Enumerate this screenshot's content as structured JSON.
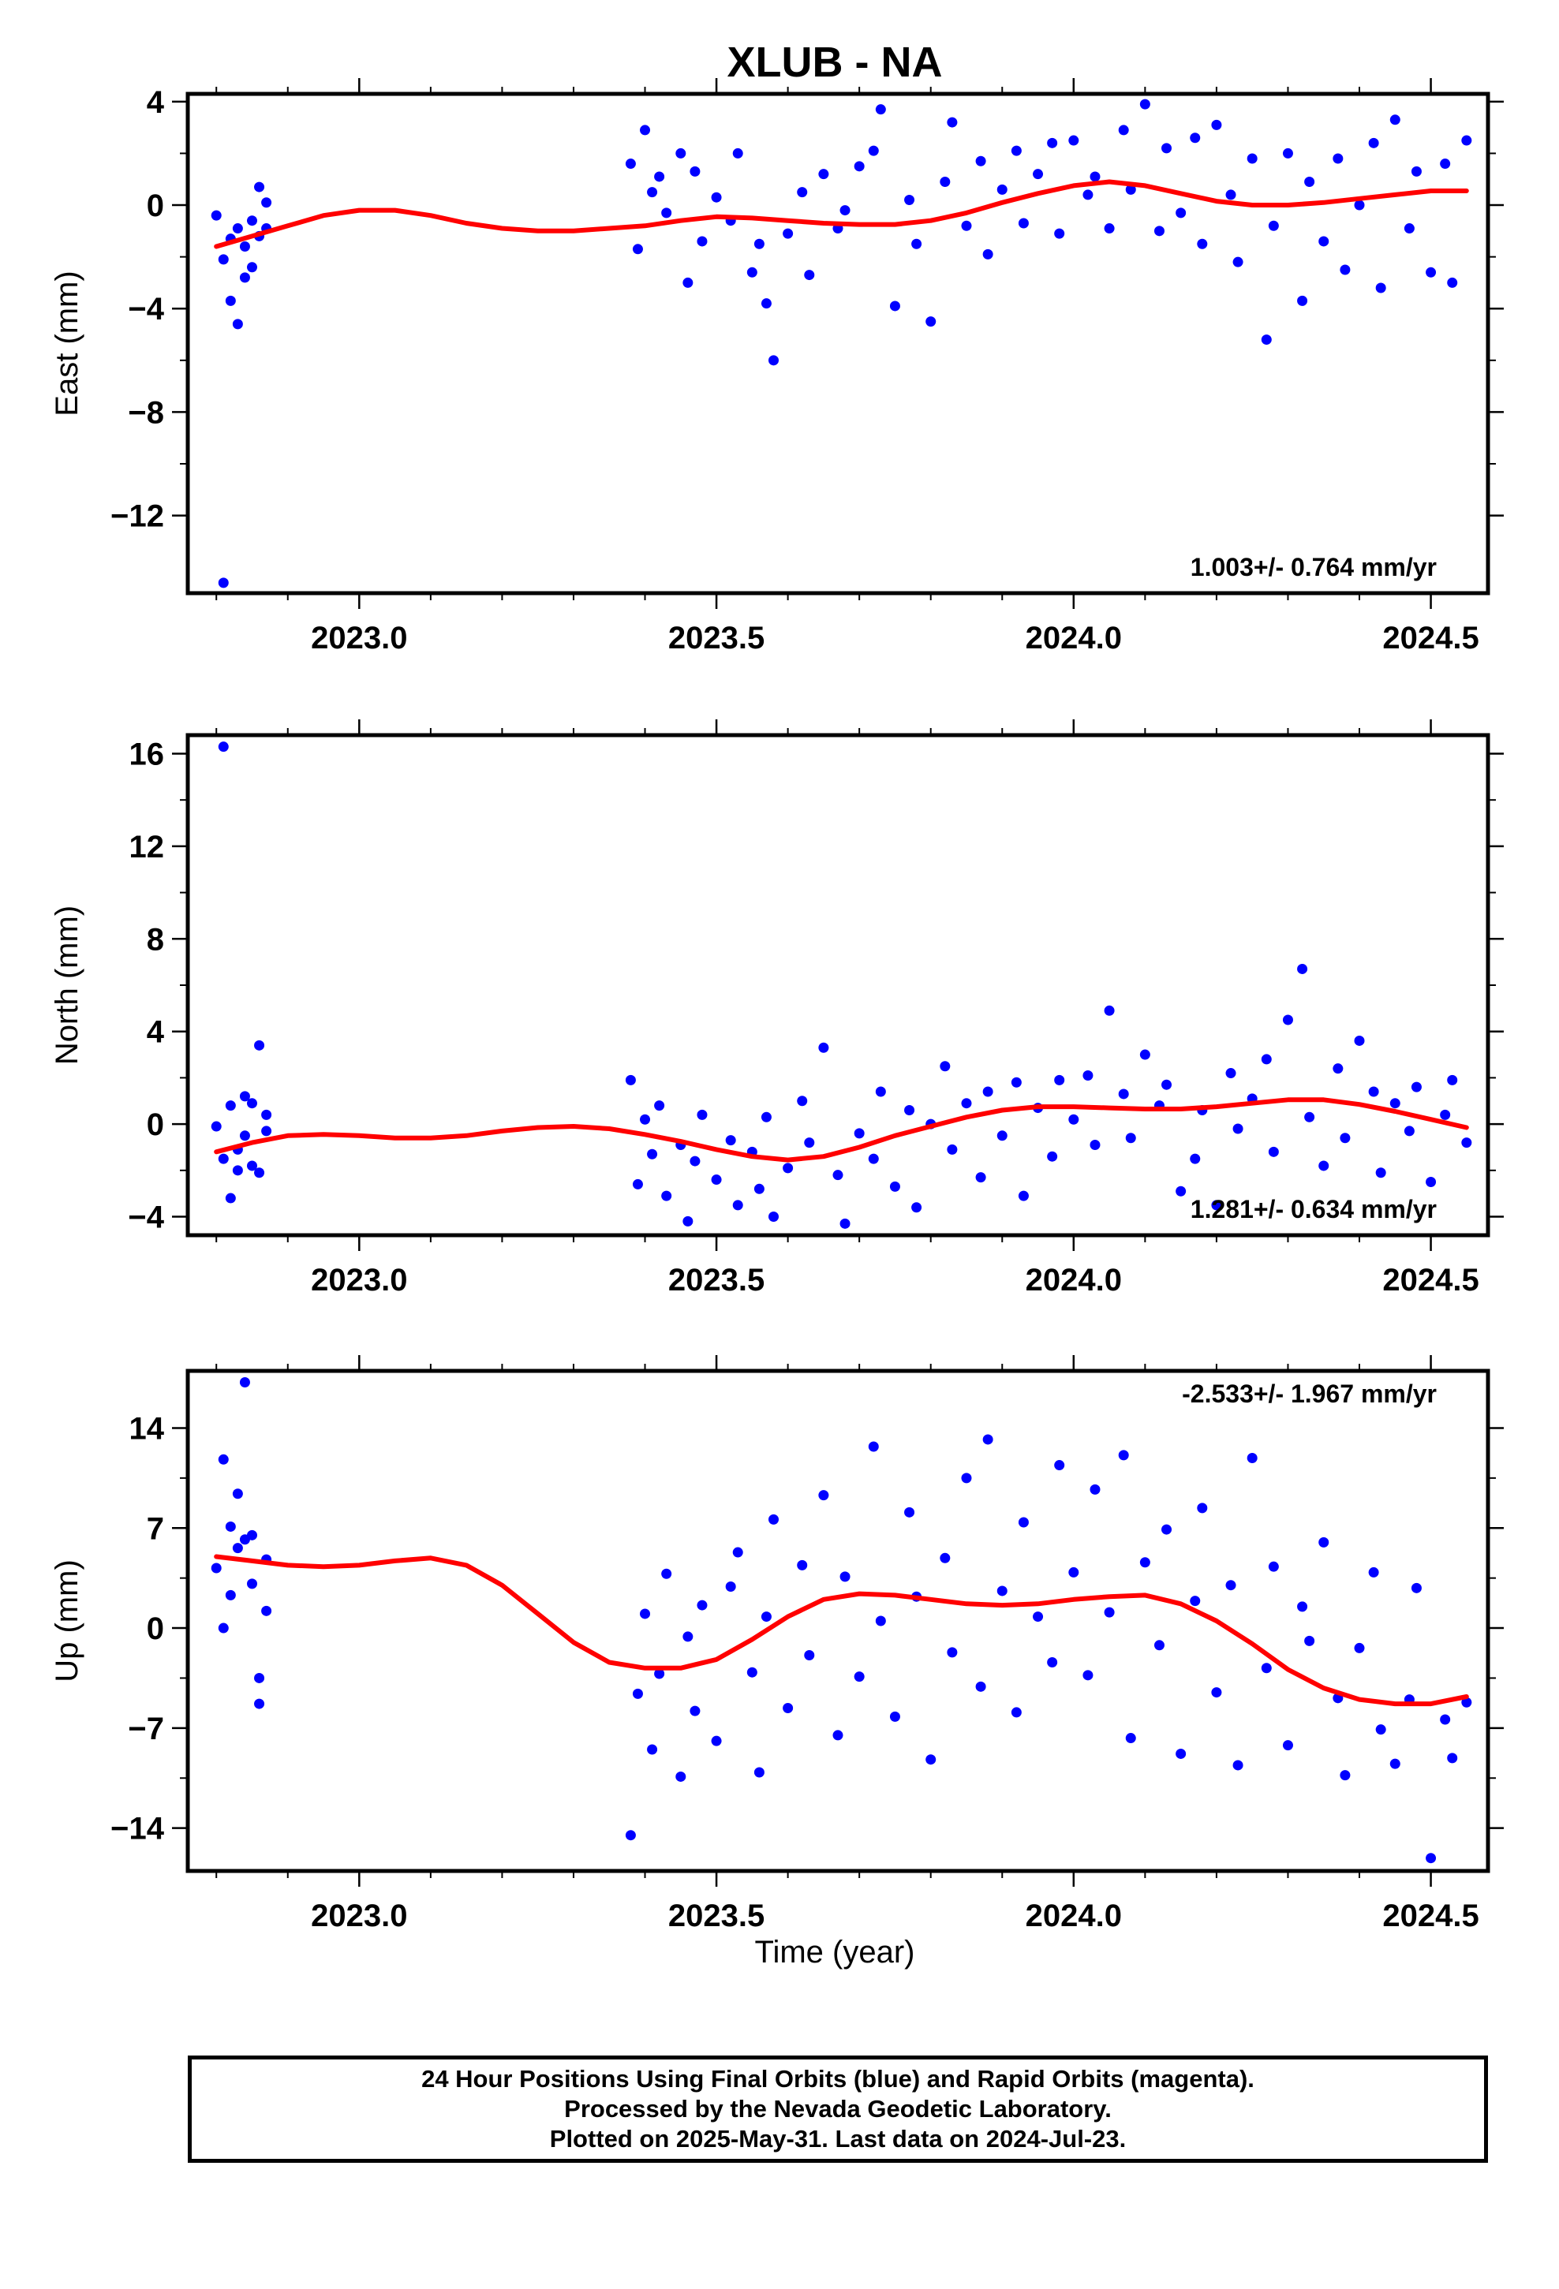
{
  "title": "XLUB - NA",
  "colors": {
    "data_points": "#0000ff",
    "fit_line": "#ff0000",
    "frame": "#000000"
  },
  "caption": {
    "line1": "24 Hour Positions Using Final Orbits (blue) and Rapid Orbits (magenta).",
    "line2": "Processed by the Nevada Geodetic Laboratory.",
    "line3": "Plotted on 2025-May-31. Last data on 2024-Jul-23."
  },
  "chart_data": [
    {
      "type": "scatter",
      "ylabel": "East (mm)",
      "xlabel": "",
      "xlim": [
        2022.76,
        2024.58
      ],
      "ylim": [
        -15.0,
        4.3
      ],
      "xticks": [
        2023.0,
        2023.5,
        2024.0,
        2024.5
      ],
      "xtick_labels": [
        "2023.0",
        "2023.5",
        "2024.0",
        "2024.5"
      ],
      "yticks": [
        4,
        0,
        -4,
        -8,
        -12
      ],
      "ytick_labels": [
        "4",
        "0",
        "−4",
        "−8",
        "−12"
      ],
      "rate_label": "1.003+/- 0.764 mm/yr",
      "rate_position": "bottom-right",
      "series": [
        {
          "kind": "points",
          "x": [
            2022.8,
            2022.81,
            2022.81,
            2022.82,
            2022.82,
            2022.83,
            2022.83,
            2022.84,
            2022.84,
            2022.85,
            2022.85,
            2022.86,
            2022.86,
            2022.87,
            2022.87,
            2023.38,
            2023.39,
            2023.4,
            2023.41,
            2023.42,
            2023.43,
            2023.45,
            2023.46,
            2023.47,
            2023.48,
            2023.5,
            2023.52,
            2023.53,
            2023.55,
            2023.56,
            2023.57,
            2023.58,
            2023.6,
            2023.62,
            2023.63,
            2023.65,
            2023.67,
            2023.68,
            2023.7,
            2023.72,
            2023.73,
            2023.75,
            2023.77,
            2023.78,
            2023.8,
            2023.82,
            2023.83,
            2023.85,
            2023.87,
            2023.88,
            2023.9,
            2023.92,
            2023.93,
            2023.95,
            2023.97,
            2023.98,
            2024.0,
            2024.02,
            2024.03,
            2024.05,
            2024.07,
            2024.08,
            2024.1,
            2024.12,
            2024.13,
            2024.15,
            2024.17,
            2024.18,
            2024.2,
            2024.22,
            2024.23,
            2024.25,
            2024.27,
            2024.28,
            2024.3,
            2024.32,
            2024.33,
            2024.35,
            2024.37,
            2024.38,
            2024.4,
            2024.42,
            2024.43,
            2024.45,
            2024.47,
            2024.48,
            2024.5,
            2024.52,
            2024.53,
            2024.55
          ],
          "y": [
            -0.4,
            -2.1,
            -14.6,
            -3.7,
            -1.3,
            -4.6,
            -0.9,
            -2.8,
            -1.6,
            -2.4,
            -0.6,
            -1.2,
            0.7,
            -0.9,
            0.1,
            1.6,
            -1.7,
            2.9,
            0.5,
            1.1,
            -0.3,
            2.0,
            -3.0,
            1.3,
            -1.4,
            0.3,
            -0.6,
            2.0,
            -2.6,
            -1.5,
            -3.8,
            -6.0,
            -1.1,
            0.5,
            -2.7,
            1.2,
            -0.9,
            -0.2,
            1.5,
            2.1,
            3.7,
            -3.9,
            0.2,
            -1.5,
            -4.5,
            0.9,
            3.2,
            -0.8,
            1.7,
            -1.9,
            0.6,
            2.1,
            -0.7,
            1.2,
            2.4,
            -1.1,
            2.5,
            0.4,
            1.1,
            -0.9,
            2.9,
            0.6,
            3.9,
            -1.0,
            2.2,
            -0.3,
            2.6,
            -1.5,
            3.1,
            0.4,
            -2.2,
            1.8,
            -5.2,
            -0.8,
            2.0,
            -3.7,
            0.9,
            -1.4,
            1.8,
            -2.5,
            0.0,
            2.4,
            -3.2,
            3.3,
            -0.9,
            1.3,
            -2.6,
            1.6,
            -3.0,
            2.5
          ]
        },
        {
          "kind": "fit",
          "x": [
            2022.8,
            2022.85,
            2022.9,
            2022.95,
            2023.0,
            2023.05,
            2023.1,
            2023.15,
            2023.2,
            2023.25,
            2023.3,
            2023.35,
            2023.4,
            2023.45,
            2023.5,
            2023.55,
            2023.6,
            2023.65,
            2023.7,
            2023.75,
            2023.8,
            2023.85,
            2023.9,
            2023.95,
            2024.0,
            2024.05,
            2024.1,
            2024.15,
            2024.2,
            2024.25,
            2024.3,
            2024.35,
            2024.4,
            2024.45,
            2024.5,
            2024.55
          ],
          "y": [
            -1.6,
            -1.2,
            -0.8,
            -0.4,
            -0.2,
            -0.2,
            -0.4,
            -0.7,
            -0.9,
            -1.0,
            -1.0,
            -0.9,
            -0.8,
            -0.6,
            -0.45,
            -0.5,
            -0.6,
            -0.7,
            -0.75,
            -0.75,
            -0.6,
            -0.3,
            0.1,
            0.45,
            0.75,
            0.9,
            0.75,
            0.45,
            0.15,
            0.0,
            0.0,
            0.1,
            0.25,
            0.4,
            0.55,
            0.55
          ]
        }
      ]
    },
    {
      "type": "scatter",
      "ylabel": "North (mm)",
      "xlabel": "",
      "xlim": [
        2022.76,
        2024.58
      ],
      "ylim": [
        -4.8,
        16.8
      ],
      "xticks": [
        2023.0,
        2023.5,
        2024.0,
        2024.5
      ],
      "xtick_labels": [
        "2023.0",
        "2023.5",
        "2024.0",
        "2024.5"
      ],
      "yticks": [
        16,
        12,
        8,
        4,
        0,
        -4
      ],
      "ytick_labels": [
        "16",
        "12",
        "8",
        "4",
        "0",
        "−4"
      ],
      "rate_label": "1.281+/- 0.634 mm/yr",
      "rate_position": "bottom-right",
      "series": [
        {
          "kind": "points",
          "x": [
            2022.8,
            2022.81,
            2022.81,
            2022.82,
            2022.82,
            2022.83,
            2022.83,
            2022.84,
            2022.84,
            2022.85,
            2022.85,
            2022.86,
            2022.86,
            2022.87,
            2022.87,
            2023.38,
            2023.39,
            2023.4,
            2023.41,
            2023.42,
            2023.43,
            2023.45,
            2023.46,
            2023.47,
            2023.48,
            2023.5,
            2023.52,
            2023.53,
            2023.55,
            2023.56,
            2023.57,
            2023.58,
            2023.6,
            2023.62,
            2023.63,
            2023.65,
            2023.67,
            2023.68,
            2023.7,
            2023.72,
            2023.73,
            2023.75,
            2023.77,
            2023.78,
            2023.8,
            2023.82,
            2023.83,
            2023.85,
            2023.87,
            2023.88,
            2023.9,
            2023.92,
            2023.93,
            2023.95,
            2023.97,
            2023.98,
            2024.0,
            2024.02,
            2024.03,
            2024.05,
            2024.07,
            2024.08,
            2024.1,
            2024.12,
            2024.13,
            2024.15,
            2024.17,
            2024.18,
            2024.2,
            2024.22,
            2024.23,
            2024.25,
            2024.27,
            2024.28,
            2024.3,
            2024.32,
            2024.33,
            2024.35,
            2024.37,
            2024.38,
            2024.4,
            2024.42,
            2024.43,
            2024.45,
            2024.47,
            2024.48,
            2024.5,
            2024.52,
            2024.53,
            2024.55
          ],
          "y": [
            -0.1,
            16.3,
            -1.5,
            -3.2,
            0.8,
            -1.1,
            -2.0,
            -0.5,
            1.2,
            -1.8,
            0.9,
            -2.1,
            3.4,
            0.4,
            -0.3,
            1.9,
            -2.6,
            0.2,
            -1.3,
            0.8,
            -3.1,
            -0.9,
            -4.2,
            -1.6,
            0.4,
            -2.4,
            -0.7,
            -3.5,
            -1.2,
            -2.8,
            0.3,
            -4.0,
            -1.9,
            1.0,
            -0.8,
            3.3,
            -2.2,
            -4.3,
            -0.4,
            -1.5,
            1.4,
            -2.7,
            0.6,
            -3.6,
            0.0,
            2.5,
            -1.1,
            0.9,
            -2.3,
            1.4,
            -0.5,
            1.8,
            -3.1,
            0.7,
            -1.4,
            1.9,
            0.2,
            2.1,
            -0.9,
            4.9,
            1.3,
            -0.6,
            3.0,
            0.8,
            1.7,
            -2.9,
            -1.5,
            0.6,
            -3.5,
            2.2,
            -0.2,
            1.1,
            2.8,
            -1.2,
            4.5,
            6.7,
            0.3,
            -1.8,
            2.4,
            -0.6,
            3.6,
            1.4,
            -2.1,
            0.9,
            -0.3,
            1.6,
            -2.5,
            0.4,
            1.9,
            -0.8
          ]
        },
        {
          "kind": "fit",
          "x": [
            2022.8,
            2022.85,
            2022.9,
            2022.95,
            2023.0,
            2023.05,
            2023.1,
            2023.15,
            2023.2,
            2023.25,
            2023.3,
            2023.35,
            2023.4,
            2023.45,
            2023.5,
            2023.55,
            2023.6,
            2023.65,
            2023.7,
            2023.75,
            2023.8,
            2023.85,
            2023.9,
            2023.95,
            2024.0,
            2024.05,
            2024.1,
            2024.15,
            2024.2,
            2024.25,
            2024.3,
            2024.35,
            2024.4,
            2024.45,
            2024.5,
            2024.55
          ],
          "y": [
            -1.2,
            -0.8,
            -0.5,
            -0.45,
            -0.5,
            -0.6,
            -0.6,
            -0.5,
            -0.3,
            -0.15,
            -0.1,
            -0.2,
            -0.45,
            -0.75,
            -1.1,
            -1.4,
            -1.55,
            -1.4,
            -1.0,
            -0.5,
            -0.1,
            0.3,
            0.6,
            0.75,
            0.75,
            0.7,
            0.65,
            0.65,
            0.75,
            0.9,
            1.05,
            1.05,
            0.85,
            0.55,
            0.2,
            -0.15
          ]
        }
      ]
    },
    {
      "type": "scatter",
      "ylabel": "Up (mm)",
      "xlabel": "Time (year)",
      "xlim": [
        2022.76,
        2024.58
      ],
      "ylim": [
        -17.0,
        18.0
      ],
      "xticks": [
        2023.0,
        2023.5,
        2024.0,
        2024.5
      ],
      "xtick_labels": [
        "2023.0",
        "2023.5",
        "2024.0",
        "2024.5"
      ],
      "yticks": [
        14,
        7,
        0,
        -7,
        -14
      ],
      "ytick_labels": [
        "14",
        "7",
        "0",
        "−7",
        "−14"
      ],
      "rate_label": "-2.533+/- 1.967 mm/yr",
      "rate_position": "top-right",
      "series": [
        {
          "kind": "points",
          "x": [
            2022.8,
            2022.81,
            2022.81,
            2022.82,
            2022.82,
            2022.83,
            2022.83,
            2022.84,
            2022.84,
            2022.85,
            2022.85,
            2022.86,
            2022.86,
            2022.87,
            2022.87,
            2023.38,
            2023.39,
            2023.4,
            2023.41,
            2023.42,
            2023.43,
            2023.45,
            2023.46,
            2023.47,
            2023.48,
            2023.5,
            2023.52,
            2023.53,
            2023.55,
            2023.56,
            2023.57,
            2023.58,
            2023.6,
            2023.62,
            2023.63,
            2023.65,
            2023.67,
            2023.68,
            2023.7,
            2023.72,
            2023.73,
            2023.75,
            2023.77,
            2023.78,
            2023.8,
            2023.82,
            2023.83,
            2023.85,
            2023.87,
            2023.88,
            2023.9,
            2023.92,
            2023.93,
            2023.95,
            2023.97,
            2023.98,
            2024.0,
            2024.02,
            2024.03,
            2024.05,
            2024.07,
            2024.08,
            2024.1,
            2024.12,
            2024.13,
            2024.15,
            2024.17,
            2024.18,
            2024.2,
            2024.22,
            2024.23,
            2024.25,
            2024.27,
            2024.28,
            2024.3,
            2024.32,
            2024.33,
            2024.35,
            2024.37,
            2024.38,
            2024.4,
            2024.42,
            2024.43,
            2024.45,
            2024.47,
            2024.48,
            2024.5,
            2024.52,
            2024.53,
            2024.55
          ],
          "y": [
            4.2,
            0.0,
            11.8,
            2.3,
            7.1,
            5.6,
            9.4,
            6.2,
            17.2,
            3.1,
            6.5,
            -3.5,
            -5.3,
            4.8,
            1.2,
            -14.5,
            -4.6,
            1.0,
            -8.5,
            -3.2,
            3.8,
            -10.4,
            -0.6,
            -5.8,
            1.6,
            -7.9,
            2.9,
            5.3,
            -3.1,
            -10.1,
            0.8,
            7.6,
            -5.6,
            4.4,
            -1.9,
            9.3,
            -7.5,
            3.6,
            -3.4,
            12.7,
            0.5,
            -6.2,
            8.1,
            2.2,
            -9.2,
            4.9,
            -1.7,
            10.5,
            -4.1,
            13.2,
            2.6,
            -5.9,
            7.4,
            0.8,
            -2.4,
            11.4,
            3.9,
            -3.3,
            9.7,
            1.1,
            12.1,
            -7.7,
            4.6,
            -1.2,
            6.9,
            -8.8,
            1.9,
            8.4,
            -4.5,
            3.0,
            -9.6,
            11.9,
            -2.8,
            4.3,
            -8.2,
            1.5,
            -0.9,
            6.0,
            -4.9,
            -10.3,
            -1.4,
            3.9,
            -7.1,
            -9.5,
            -5.0,
            2.8,
            -16.1,
            -6.4,
            -9.1,
            -5.2
          ]
        },
        {
          "kind": "fit",
          "x": [
            2022.8,
            2022.85,
            2022.9,
            2022.95,
            2023.0,
            2023.05,
            2023.1,
            2023.15,
            2023.2,
            2023.25,
            2023.3,
            2023.35,
            2023.4,
            2023.45,
            2023.5,
            2023.55,
            2023.6,
            2023.65,
            2023.7,
            2023.75,
            2023.8,
            2023.85,
            2023.9,
            2023.95,
            2024.0,
            2024.05,
            2024.1,
            2024.15,
            2024.2,
            2024.25,
            2024.3,
            2024.35,
            2024.4,
            2024.45,
            2024.5,
            2024.55
          ],
          "y": [
            5.0,
            4.7,
            4.4,
            4.3,
            4.4,
            4.7,
            4.9,
            4.4,
            3.0,
            1.0,
            -1.0,
            -2.4,
            -2.8,
            -2.8,
            -2.2,
            -0.8,
            0.8,
            2.0,
            2.4,
            2.3,
            2.0,
            1.7,
            1.6,
            1.7,
            2.0,
            2.2,
            2.3,
            1.7,
            0.5,
            -1.1,
            -2.9,
            -4.2,
            -5.0,
            -5.3,
            -5.3,
            -4.8
          ]
        }
      ]
    }
  ]
}
